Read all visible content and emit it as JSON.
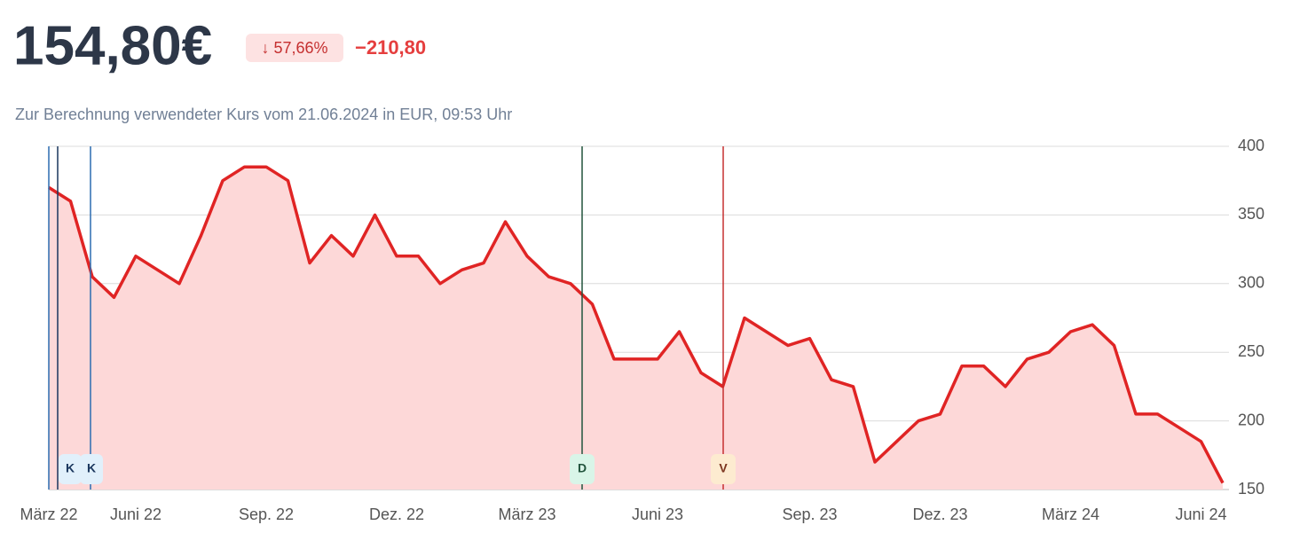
{
  "header": {
    "price": "154,80€",
    "change_percent": "↓ 57,66%",
    "change_abs": "−210,80",
    "subtitle": "Zur Berechnung verwendeter Kurs vom 21.06.2024 in EUR, 09:53 Uhr"
  },
  "markers": [
    "K",
    "K",
    "D",
    "V"
  ],
  "chart_data": {
    "type": "area",
    "categories": [
      "März 22",
      null,
      null,
      null,
      "Juni 22",
      null,
      null,
      null,
      null,
      null,
      "Sep. 22",
      null,
      null,
      null,
      null,
      null,
      "Dez. 22",
      null,
      null,
      null,
      null,
      null,
      "März 23",
      null,
      null,
      null,
      null,
      null,
      "Juni 23",
      null,
      null,
      null,
      null,
      null,
      null,
      "Sep. 23",
      null,
      null,
      null,
      null,
      null,
      "Dez. 23",
      null,
      null,
      null,
      null,
      null,
      "März 24",
      null,
      null,
      null,
      null,
      null,
      "Juni 24",
      null
    ],
    "series": [
      {
        "color": "#e02424",
        "fill": "#fdd8d8",
        "values": [
          370,
          360,
          305,
          290,
          320,
          310,
          300,
          335,
          375,
          385,
          385,
          375,
          315,
          335,
          320,
          350,
          320,
          320,
          300,
          310,
          315,
          345,
          320,
          305,
          300,
          285,
          245,
          245,
          245,
          265,
          235,
          225,
          275,
          265,
          255,
          260,
          230,
          225,
          170,
          185,
          200,
          205,
          240,
          240,
          225,
          245,
          250,
          265,
          270,
          255,
          205,
          205,
          195,
          185,
          154.8
        ]
      }
    ],
    "ylim": [
      150,
      400
    ],
    "yticks": [
      150,
      200,
      250,
      300,
      350,
      400
    ],
    "grid": true,
    "y_axis_side": "right"
  }
}
